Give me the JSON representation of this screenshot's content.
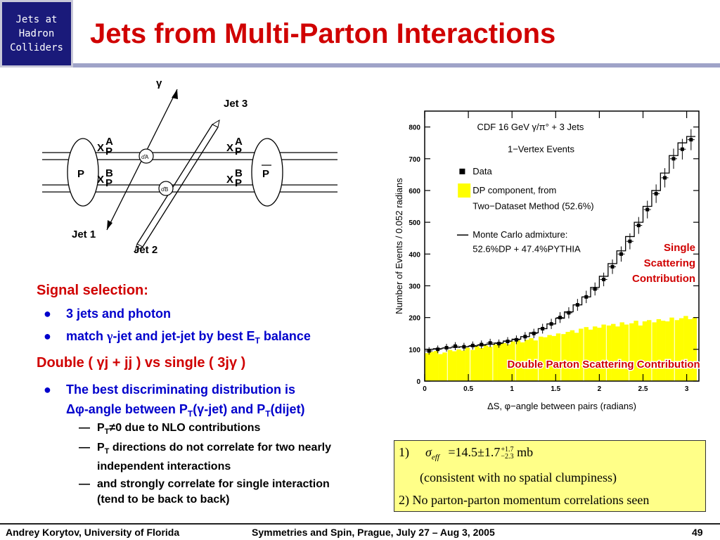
{
  "header": {
    "logo_text": "Jets at\nHadron\nColliders",
    "title": "Jets from Multi-Parton Interactions"
  },
  "diagram": {
    "gamma": "γ",
    "jet1": "Jet 1",
    "jet2": "Jet 2",
    "jet3": "Jet 3",
    "p_left": "P",
    "p_right": "P",
    "xa_left": "X",
    "xb_left": "X",
    "xa_right": "X",
    "xb_right": "X",
    "sub_p": "P",
    "sub_pbar": "P",
    "sup_a": "A",
    "sup_b": "B",
    "vertex_a": "σ̂A",
    "vertex_b": "σ̂B"
  },
  "text": {
    "signal_title": "Signal selection:",
    "bullet1": "3 jets and photon",
    "bullet2_pre": "match ",
    "bullet2_gamma": "γ",
    "bullet2_mid": "-jet and jet-jet by best E",
    "bullet2_sub": "T",
    "bullet2_post": " balance",
    "double_title": "Double ( γj + jj ) vs single ( 3jγ )",
    "bullet3_line1": "The best discriminating distribution is",
    "bullet3_line2": "Δφ-angle between P",
    "bullet3_sub1": "T",
    "bullet3_mid": "(γ-jet) and P",
    "bullet3_sub2": "T",
    "bullet3_post": "(dijet)",
    "dash_mark": "—",
    "dash1_pre": "P",
    "dash1_sub": "T",
    "dash1_post": "≠0 due to NLO contributions",
    "dash2_pre": "P",
    "dash2_sub": "T",
    "dash2_post": " directions do not correlate for two nearly independent  interactions",
    "dash3": "and strongly correlate for single interaction (tend to be back to back)"
  },
  "chart_data": {
    "type": "bar",
    "title_line1": "CDF   16 GeV  γ/π° + 3 Jets",
    "title_line2": "1−Vertex Events",
    "xlabel": "ΔS, φ−angle between pairs (radians)",
    "ylabel": "Number of Events / 0.052 radians",
    "xlim": [
      0,
      3.14
    ],
    "ylim": [
      0,
      850
    ],
    "xticks": [
      "0",
      "0.5",
      "1",
      "1.5",
      "2",
      "2.5",
      "3"
    ],
    "yticks": [
      "0",
      "100",
      "200",
      "300",
      "400",
      "500",
      "600",
      "700",
      "800"
    ],
    "legend": {
      "data": "Data",
      "dp_line1": "DP component, from",
      "dp_line2": "Two−Dataset Method (52.6%)",
      "mc_line1": "Monte Carlo admixture:",
      "mc_line2": "52.6%DP + 47.4%PYTHIA"
    },
    "annotation_single": [
      "Single",
      "Scattering",
      "Contribution"
    ],
    "annotation_double": "Double Parton Scattering Contribution",
    "dp_fill_color": "#ffff00",
    "series": [
      {
        "name": "DP component",
        "x": [
          0.03,
          0.08,
          0.13,
          0.18,
          0.23,
          0.29,
          0.34,
          0.39,
          0.44,
          0.49,
          0.55,
          0.6,
          0.65,
          0.7,
          0.75,
          0.81,
          0.86,
          0.91,
          0.96,
          1.01,
          1.07,
          1.12,
          1.17,
          1.22,
          1.27,
          1.33,
          1.38,
          1.43,
          1.48,
          1.53,
          1.59,
          1.64,
          1.69,
          1.74,
          1.79,
          1.85,
          1.9,
          1.95,
          2.0,
          2.05,
          2.11,
          2.16,
          2.21,
          2.26,
          2.31,
          2.37,
          2.42,
          2.47,
          2.52,
          2.57,
          2.63,
          2.68,
          2.73,
          2.78,
          2.83,
          2.89,
          2.94,
          2.99,
          3.04,
          3.09
        ],
        "values": [
          88,
          92,
          95,
          85,
          90,
          98,
          94,
          100,
          96,
          105,
          98,
          110,
          104,
          112,
          108,
          115,
          118,
          120,
          116,
          125,
          128,
          122,
          130,
          135,
          128,
          140,
          138,
          145,
          142,
          150,
          148,
          155,
          160,
          152,
          165,
          170,
          162,
          172,
          168,
          178,
          175,
          180,
          172,
          185,
          178,
          182,
          190,
          175,
          188,
          192,
          185,
          195,
          190,
          188,
          200,
          192,
          198,
          205,
          195,
          200
        ]
      },
      {
        "name": "Data",
        "x": [
          0.05,
          0.15,
          0.25,
          0.35,
          0.45,
          0.55,
          0.65,
          0.75,
          0.85,
          0.95,
          1.05,
          1.15,
          1.25,
          1.35,
          1.45,
          1.55,
          1.65,
          1.75,
          1.85,
          1.95,
          2.05,
          2.15,
          2.25,
          2.35,
          2.45,
          2.55,
          2.65,
          2.75,
          2.85,
          2.95,
          3.05
        ],
        "values": [
          95,
          100,
          105,
          110,
          108,
          112,
          115,
          120,
          118,
          125,
          130,
          140,
          150,
          165,
          180,
          200,
          215,
          240,
          265,
          290,
          320,
          360,
          400,
          440,
          490,
          540,
          590,
          640,
          700,
          730,
          760
        ]
      },
      {
        "name": "Monte Carlo admixture",
        "x": [
          0.05,
          0.15,
          0.25,
          0.35,
          0.45,
          0.55,
          0.65,
          0.75,
          0.85,
          0.95,
          1.05,
          1.15,
          1.25,
          1.35,
          1.45,
          1.55,
          1.65,
          1.75,
          1.85,
          1.95,
          2.05,
          2.15,
          2.25,
          2.35,
          2.45,
          2.55,
          2.65,
          2.75,
          2.85,
          2.95,
          3.05
        ],
        "values": [
          100,
          102,
          104,
          106,
          108,
          110,
          113,
          116,
          120,
          126,
          132,
          140,
          152,
          165,
          180,
          198,
          218,
          240,
          265,
          295,
          330,
          370,
          410,
          455,
          500,
          550,
          600,
          655,
          710,
          750,
          770
        ]
      }
    ]
  },
  "formula": {
    "num": "1)",
    "sigma": "σ",
    "sub": "eff",
    "eq": "=14.5±1.7",
    "sup": "+1.7",
    "sub2": "−2.3",
    "unit": "mb",
    "note": "(consistent with no spatial clumpiness)",
    "line2": "2)  No parton-parton momentum correlations seen"
  },
  "footer": {
    "author": "Andrey Korytov, University of Florida",
    "conference": "Symmetries and Spin, Prague, July 27 – Aug 3, 2005",
    "page": "49"
  }
}
